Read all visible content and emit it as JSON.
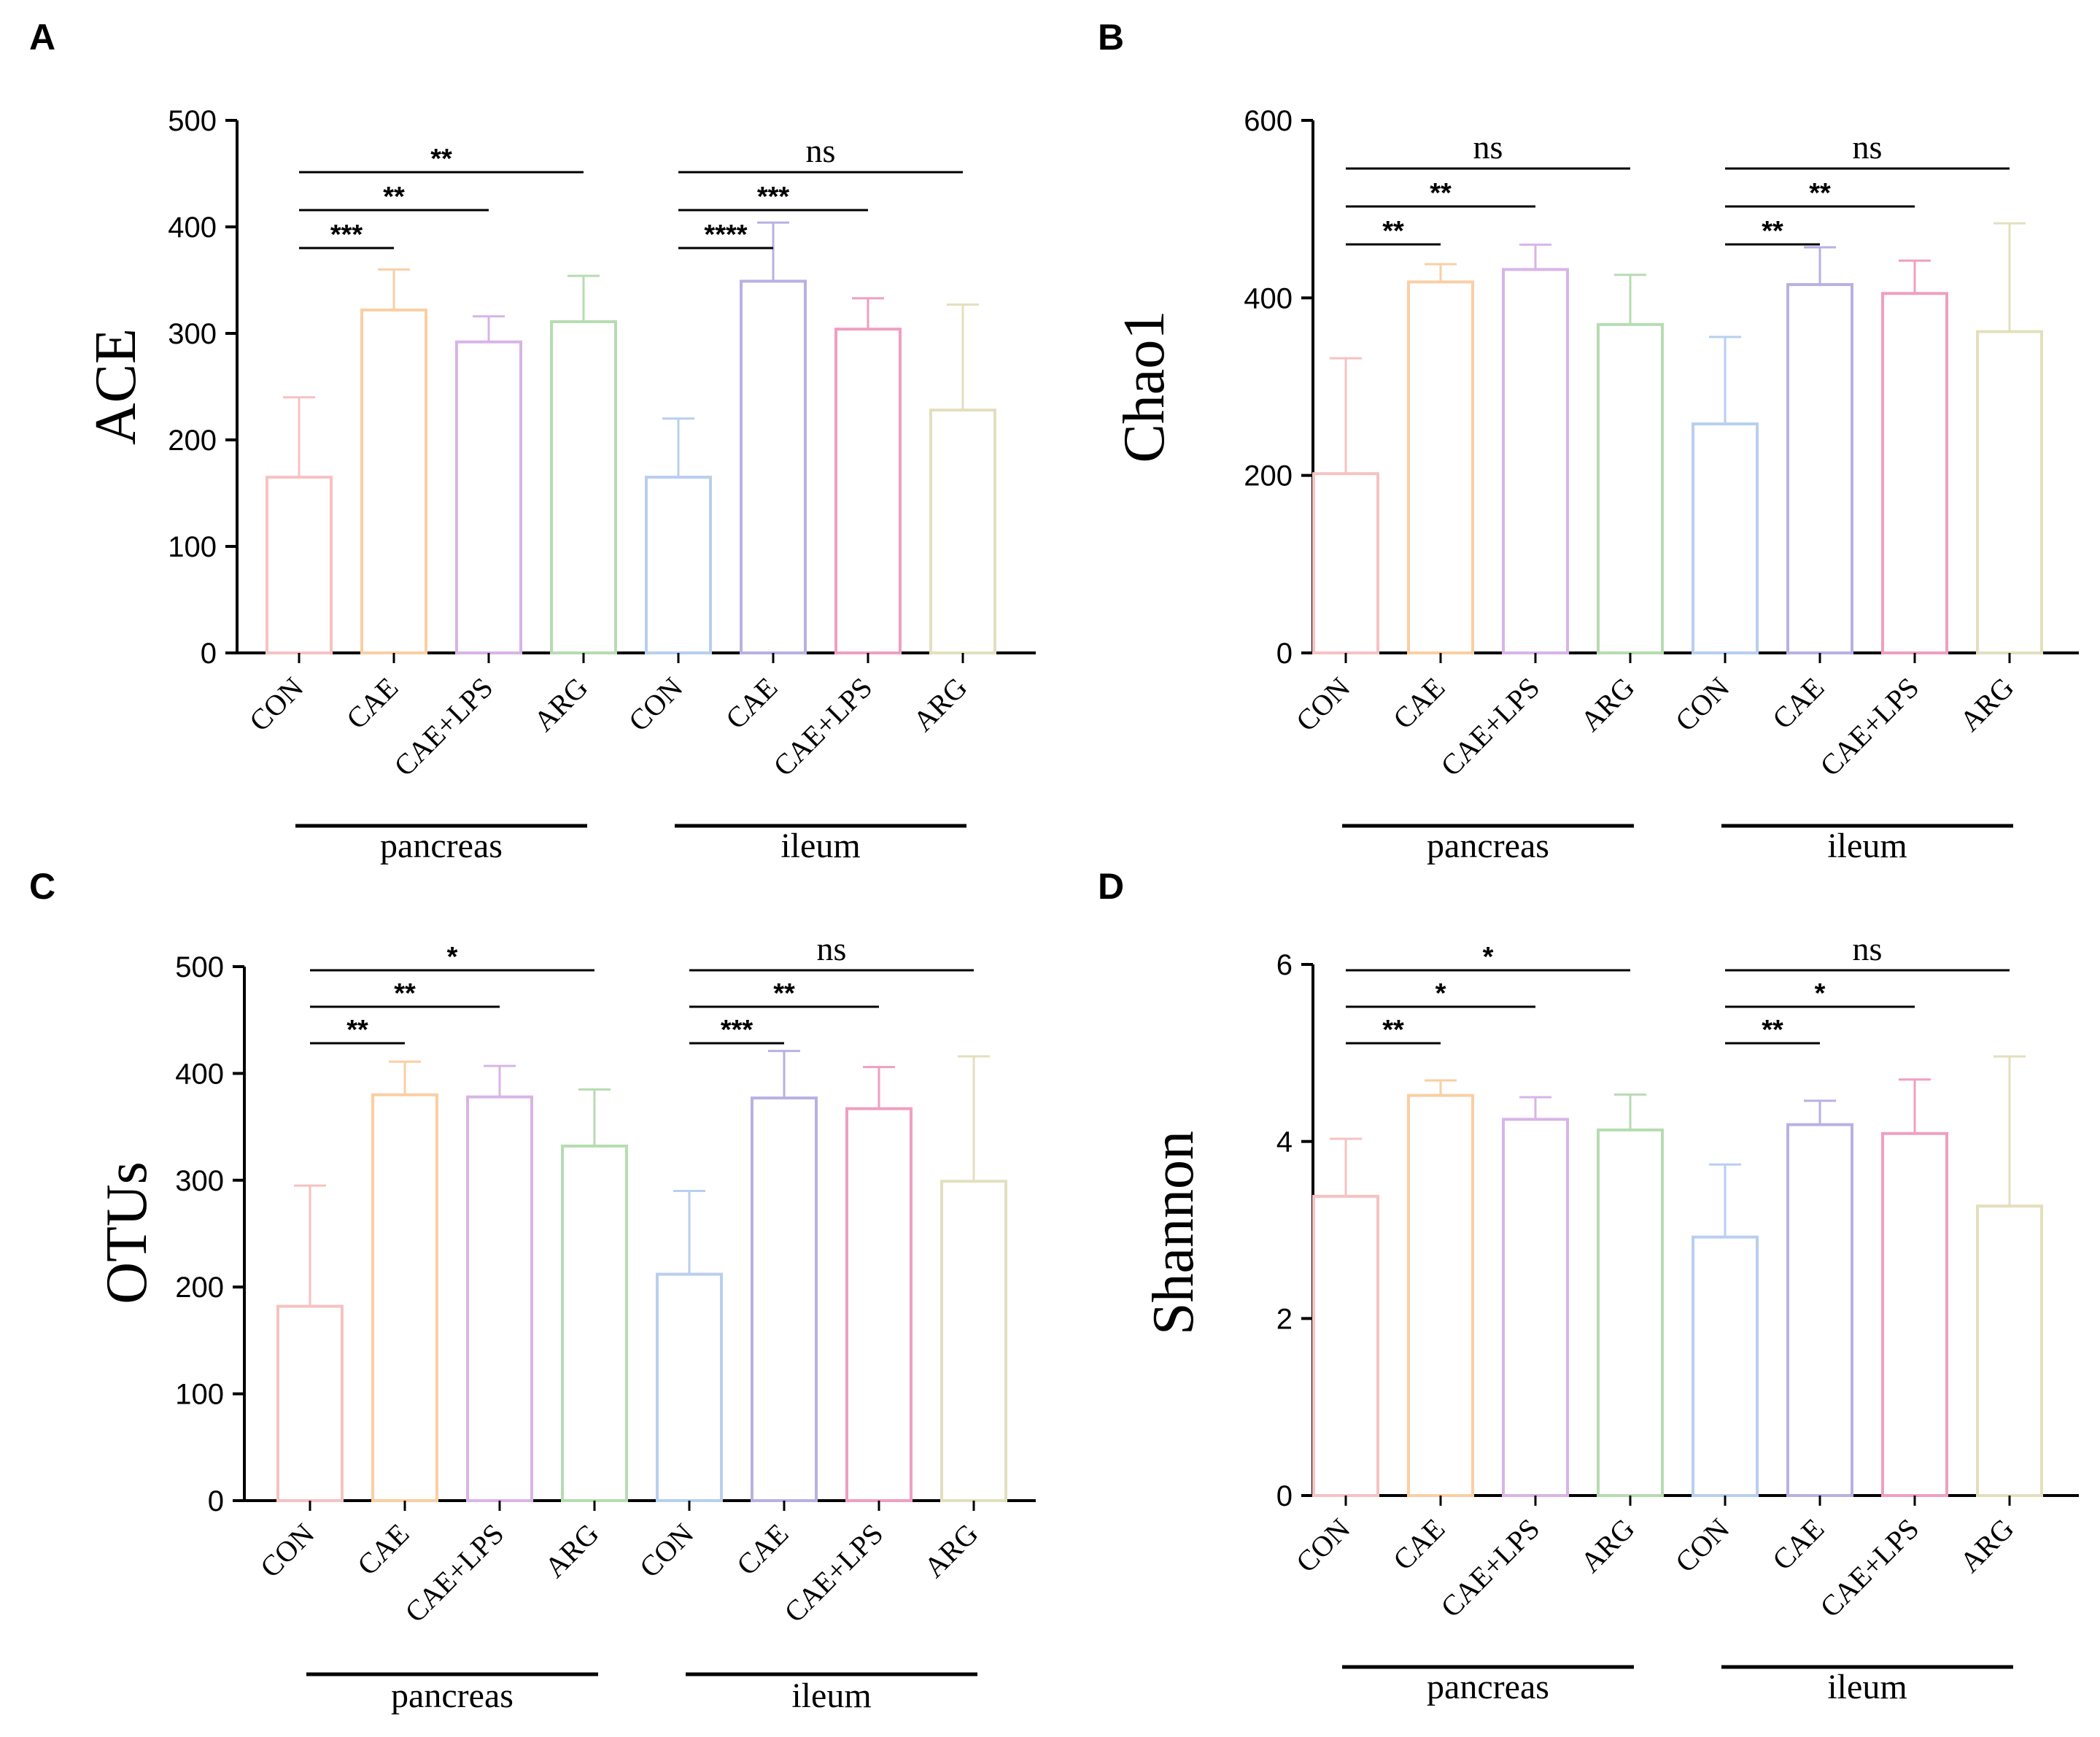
{
  "chart_data": [
    {
      "panel": "A",
      "type": "bar",
      "ylabel": "ACE",
      "ylim": [
        0,
        500
      ],
      "yticks": [
        0,
        100,
        200,
        300,
        400,
        500
      ],
      "categories": [
        "CON",
        "CAE",
        "CAE+LPS",
        "ARG",
        "CON",
        "CAE",
        "CAE+LPS",
        "ARG"
      ],
      "groups": [
        {
          "label": "pancreas",
          "from": 0,
          "to": 3
        },
        {
          "label": "ileum",
          "from": 4,
          "to": 7
        }
      ],
      "values": [
        165,
        322,
        292,
        311,
        165,
        349,
        304,
        228
      ],
      "errors": [
        75,
        38,
        24,
        43,
        55,
        55,
        29,
        99
      ],
      "colors": [
        "#f6c2c2",
        "#f9cfa3",
        "#d9b4e6",
        "#b6dcb1",
        "#b8cfee",
        "#b7b1e2",
        "#ef9fc1",
        "#e3dfbd"
      ],
      "significance": [
        {
          "from": 0,
          "to": 1,
          "label": "***"
        },
        {
          "from": 0,
          "to": 2,
          "label": "**"
        },
        {
          "from": 0,
          "to": 3,
          "label": "**"
        },
        {
          "from": 4,
          "to": 5,
          "label": "****"
        },
        {
          "from": 4,
          "to": 6,
          "label": "***"
        },
        {
          "from": 4,
          "to": 7,
          "label": "ns"
        }
      ]
    },
    {
      "panel": "B",
      "type": "bar",
      "ylabel": "Chao1",
      "ylim": [
        0,
        600
      ],
      "yticks": [
        0,
        200,
        400,
        600
      ],
      "categories": [
        "CON",
        "CAE",
        "CAE+LPS",
        "ARG",
        "CON",
        "CAE",
        "CAE+LPS",
        "ARG"
      ],
      "groups": [
        {
          "label": "pancreas",
          "from": 0,
          "to": 3
        },
        {
          "label": "ileum",
          "from": 4,
          "to": 7
        }
      ],
      "values": [
        202,
        418,
        432,
        370,
        258,
        415,
        405,
        362
      ],
      "errors": [
        130,
        20,
        28,
        56,
        98,
        42,
        37,
        122
      ],
      "colors": [
        "#f6c2c2",
        "#f9cfa3",
        "#d9b4e6",
        "#b6dcb1",
        "#b8cfee",
        "#b7b1e2",
        "#ef9fc1",
        "#e3dfbd"
      ],
      "significance": [
        {
          "from": 0,
          "to": 1,
          "label": "**"
        },
        {
          "from": 0,
          "to": 2,
          "label": "**"
        },
        {
          "from": 0,
          "to": 3,
          "label": "ns"
        },
        {
          "from": 4,
          "to": 5,
          "label": "**"
        },
        {
          "from": 4,
          "to": 6,
          "label": "**"
        },
        {
          "from": 4,
          "to": 7,
          "label": "ns"
        }
      ]
    },
    {
      "panel": "C",
      "type": "bar",
      "ylabel": "OTUs",
      "ylim": [
        0,
        500
      ],
      "yticks": [
        0,
        100,
        200,
        300,
        400,
        500
      ],
      "categories": [
        "CON",
        "CAE",
        "CAE+LPS",
        "ARG",
        "CON",
        "CAE",
        "CAE+LPS",
        "ARG"
      ],
      "groups": [
        {
          "label": "pancreas",
          "from": 0,
          "to": 3
        },
        {
          "label": "ileum",
          "from": 4,
          "to": 7
        }
      ],
      "values": [
        182,
        380,
        378,
        332,
        212,
        377,
        367,
        299
      ],
      "errors": [
        113,
        31,
        29,
        53,
        78,
        44,
        39,
        117
      ],
      "colors": [
        "#f6c2c2",
        "#f9cfa3",
        "#d9b4e6",
        "#b6dcb1",
        "#b8cfee",
        "#b7b1e2",
        "#ef9fc1",
        "#e3dfbd"
      ],
      "significance": [
        {
          "from": 0,
          "to": 1,
          "label": "**"
        },
        {
          "from": 0,
          "to": 2,
          "label": "**"
        },
        {
          "from": 0,
          "to": 3,
          "label": "*"
        },
        {
          "from": 4,
          "to": 5,
          "label": "***"
        },
        {
          "from": 4,
          "to": 6,
          "label": "**"
        },
        {
          "from": 4,
          "to": 7,
          "label": "ns"
        }
      ]
    },
    {
      "panel": "D",
      "type": "bar",
      "ylabel": "Shannon",
      "ylim": [
        0,
        6
      ],
      "yticks": [
        0,
        2,
        4,
        6
      ],
      "categories": [
        "CON",
        "CAE",
        "CAE+LPS",
        "ARG",
        "CON",
        "CAE",
        "CAE+LPS",
        "ARG"
      ],
      "groups": [
        {
          "label": "pancreas",
          "from": 0,
          "to": 3
        },
        {
          "label": "ileum",
          "from": 4,
          "to": 7
        }
      ],
      "values": [
        3.38,
        4.52,
        4.25,
        4.13,
        2.92,
        4.19,
        4.09,
        3.27
      ],
      "errors": [
        0.65,
        0.17,
        0.25,
        0.4,
        0.82,
        0.27,
        0.61,
        1.69
      ],
      "colors": [
        "#f6c2c2",
        "#f9cfa3",
        "#d9b4e6",
        "#b6dcb1",
        "#b8cfee",
        "#b7b1e2",
        "#ef9fc1",
        "#e3dfbd"
      ],
      "significance": [
        {
          "from": 0,
          "to": 1,
          "label": "**"
        },
        {
          "from": 0,
          "to": 2,
          "label": "*"
        },
        {
          "from": 0,
          "to": 3,
          "label": "*"
        },
        {
          "from": 4,
          "to": 5,
          "label": "**"
        },
        {
          "from": 4,
          "to": 6,
          "label": "*"
        },
        {
          "from": 4,
          "to": 7,
          "label": "ns"
        }
      ]
    }
  ]
}
